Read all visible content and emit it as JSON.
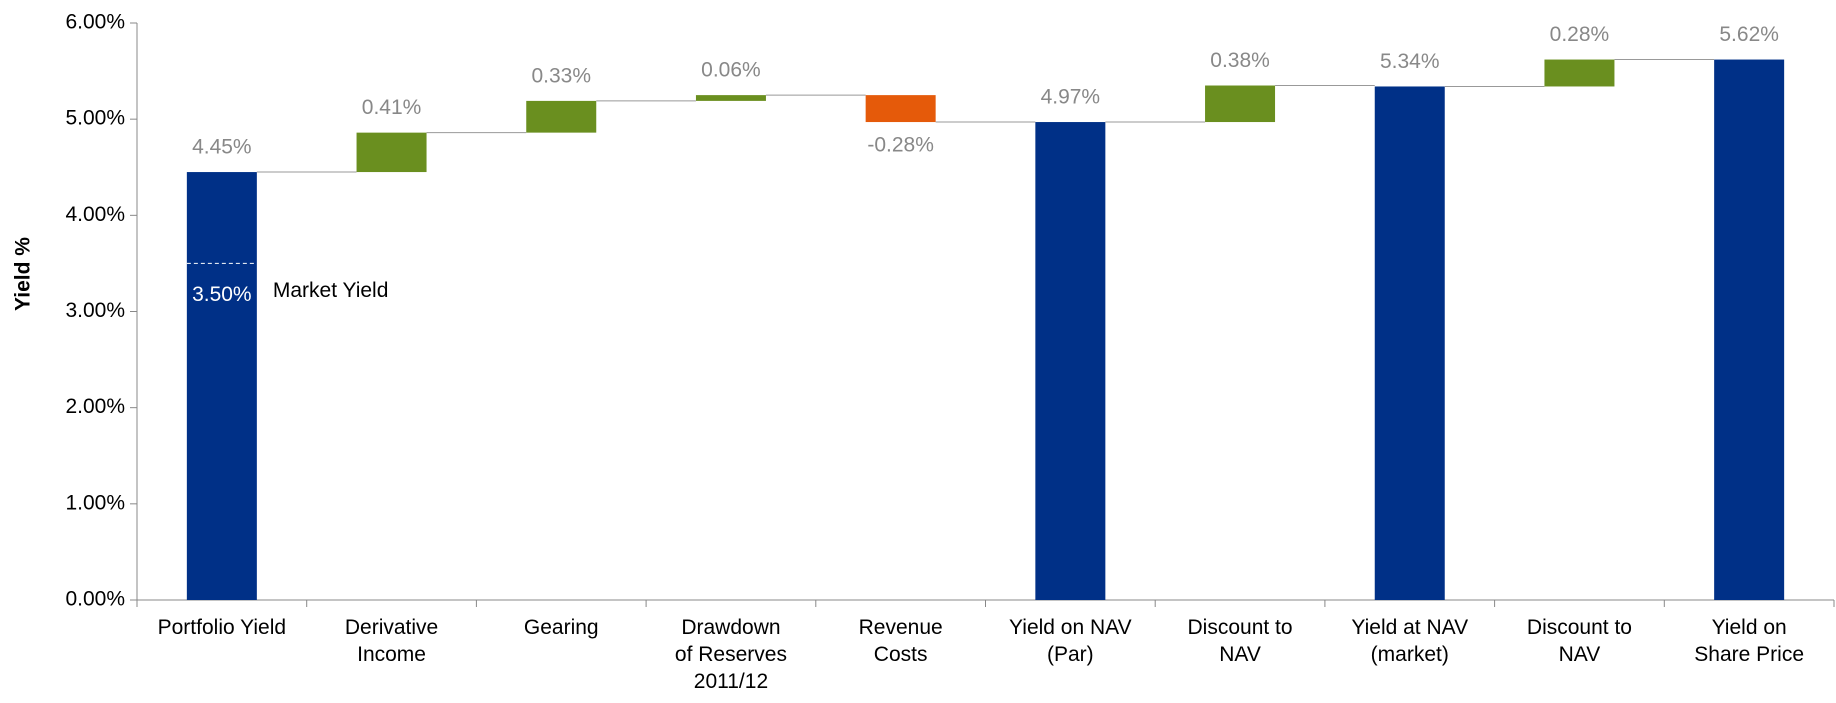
{
  "chart_data": {
    "type": "waterfall",
    "y_label": "Yield %",
    "categories": [
      "Portfolio Yield",
      "Derivative\nIncome",
      "Gearing",
      "Drawdown\nof Reserves\n2011/12",
      "Revenue\nCosts",
      "Yield on NAV\n(Par)",
      "Discount to\nNAV",
      "Yield at NAV\n(market)",
      "Discount to\nNAV",
      "Yield on\nShare Price"
    ],
    "values": [
      4.45,
      0.41,
      0.33,
      0.06,
      -0.28,
      4.97,
      0.38,
      5.34,
      0.28,
      5.62
    ],
    "value_labels": [
      "4.45%",
      "0.41%",
      "0.33%",
      "0.06%",
      "-0.28%",
      "4.97%",
      "0.38%",
      "5.34%",
      "0.28%",
      "5.62%"
    ],
    "measures": [
      "total",
      "relative",
      "relative",
      "relative",
      "relative",
      "total",
      "relative",
      "total",
      "relative",
      "total"
    ],
    "colors": {
      "total": "#003087",
      "increase": "#6a8f1f",
      "decrease": "#e55a0a"
    },
    "ylim": [
      0,
      6
    ],
    "yticks": [
      {
        "value": 0,
        "label": "0.00%"
      },
      {
        "value": 1,
        "label": "1.00%"
      },
      {
        "value": 2,
        "label": "2.00%"
      },
      {
        "value": 3,
        "label": "3.00%"
      },
      {
        "value": 4,
        "label": "4.00%"
      },
      {
        "value": 5,
        "label": "5.00%"
      },
      {
        "value": 6,
        "label": "6.00%"
      }
    ],
    "annotations": [
      {
        "text": "Market Yield",
        "value": 3.5,
        "value_label": "3.50%"
      }
    ]
  }
}
